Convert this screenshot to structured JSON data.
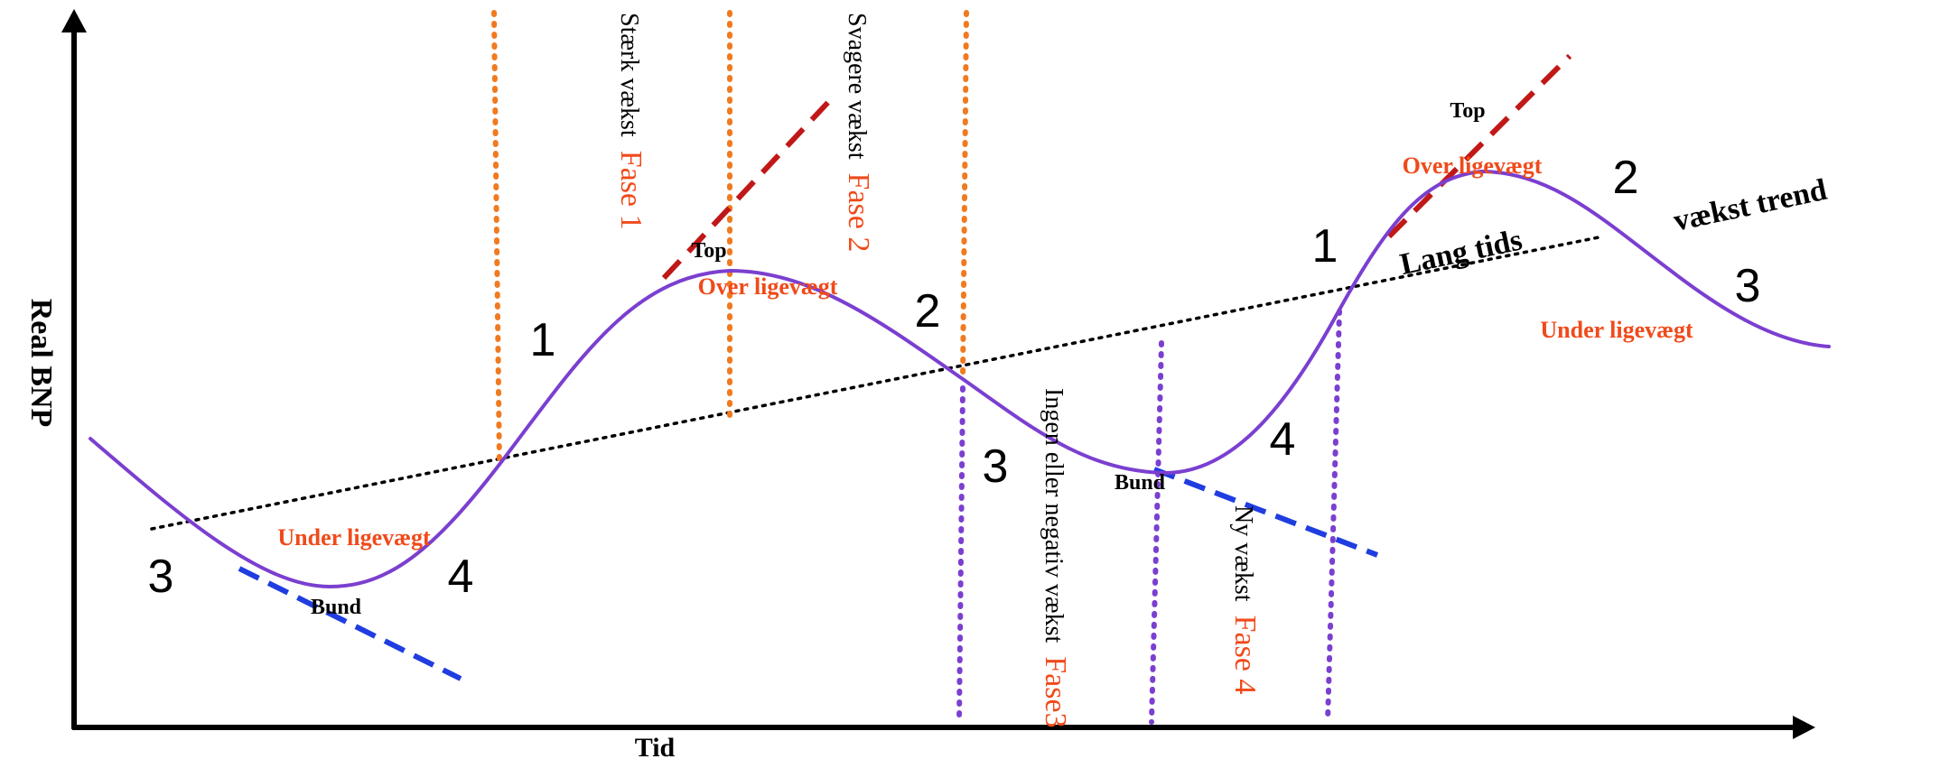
{
  "axes": {
    "y_label": "Real BNP",
    "x_label": "Tid"
  },
  "trend": {
    "label_part1": "Lang tids",
    "label_part2": "vækst trend"
  },
  "labels": {
    "top": "Top",
    "bund": "Bund",
    "over": "Over ligevægt",
    "under": "Under ligevægt"
  },
  "phases": {
    "p1_text": "Stærk vækst",
    "p1_name": "Fase 1",
    "p2_text": "Svagere vækst",
    "p2_name": "Fase 2",
    "p3_text": "Ingen eller negativ vækst",
    "p3_name": "Fase3",
    "p4_text": "Ny vækst",
    "p4_name": "Fase 4"
  },
  "numbers": {
    "n1": "1",
    "n2": "2",
    "n3": "3",
    "n4": "4"
  },
  "colors": {
    "curve": "#7b3fd0",
    "phase_line_orange": "#f07a20",
    "phase_line_purple": "#7b3fd0",
    "red_label": "#f04a1a",
    "tangent_red": "#c01818",
    "tangent_blue": "#1f3de0",
    "trend": "#000000",
    "axis": "#000000"
  }
}
